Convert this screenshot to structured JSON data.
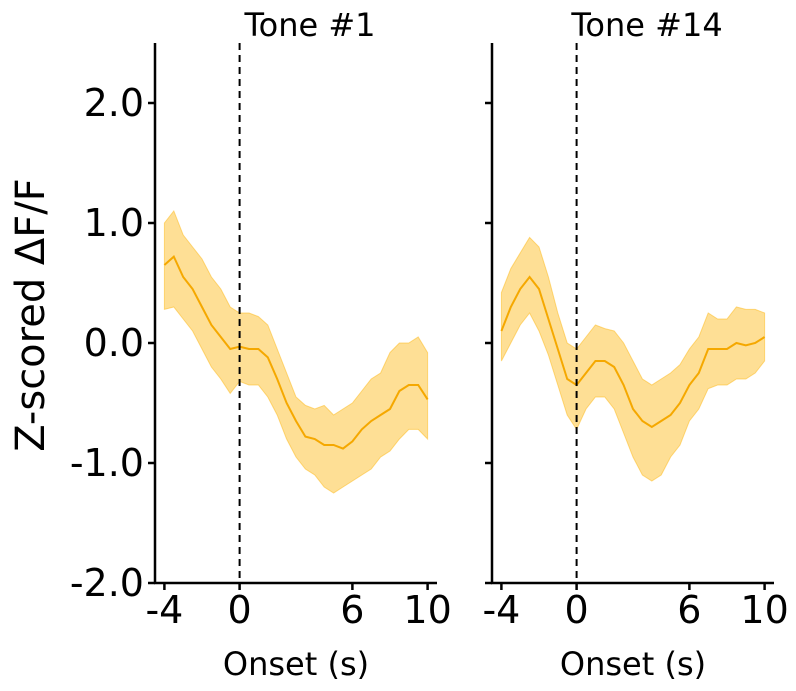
{
  "chart_data": {
    "type": "line",
    "ylabel": "Z-scored ΔF/F",
    "ylim": [
      -2.0,
      2.5
    ],
    "yticks": [
      -2.0,
      -1.0,
      0.0,
      1.0,
      2.0
    ],
    "ytick_labels": [
      "-2.0",
      "-1.0",
      "0.0",
      "1.0",
      "2.0"
    ],
    "xlim": [
      -4.5,
      10.5
    ],
    "xticks": [
      -4,
      0,
      6,
      10
    ],
    "xtick_labels": [
      "-4",
      "0",
      "6",
      "10"
    ],
    "onset_marker_x": 0,
    "colors": {
      "line": "#f5a800",
      "band": "#fdb714"
    },
    "grid": false,
    "legend": "none",
    "panels": [
      {
        "title": "Tone #1",
        "xlabel": "Onset (s)",
        "x": [
          -4,
          -3.5,
          -3,
          -2.5,
          -2,
          -1.5,
          -1,
          -0.5,
          0,
          0.5,
          1,
          1.5,
          2,
          2.5,
          3,
          3.5,
          4,
          4.5,
          5,
          5.5,
          6,
          6.5,
          7,
          7.5,
          8,
          8.5,
          9,
          9.5,
          10
        ],
        "mean": [
          0.65,
          0.72,
          0.55,
          0.45,
          0.3,
          0.15,
          0.05,
          -0.05,
          -0.03,
          -0.05,
          -0.05,
          -0.12,
          -0.3,
          -0.5,
          -0.65,
          -0.78,
          -0.8,
          -0.85,
          -0.85,
          -0.88,
          -0.82,
          -0.72,
          -0.65,
          -0.6,
          -0.55,
          -0.4,
          -0.35,
          -0.35,
          -0.47
        ],
        "upper": [
          1.0,
          1.1,
          0.9,
          0.8,
          0.7,
          0.55,
          0.45,
          0.3,
          0.25,
          0.25,
          0.22,
          0.15,
          -0.05,
          -0.25,
          -0.45,
          -0.52,
          -0.55,
          -0.52,
          -0.6,
          -0.55,
          -0.5,
          -0.4,
          -0.3,
          -0.25,
          -0.08,
          0.0,
          0.0,
          0.05,
          -0.08
        ],
        "lower": [
          0.28,
          0.3,
          0.2,
          0.1,
          -0.05,
          -0.2,
          -0.3,
          -0.42,
          -0.32,
          -0.35,
          -0.35,
          -0.45,
          -0.6,
          -0.8,
          -0.95,
          -1.05,
          -1.1,
          -1.2,
          -1.25,
          -1.2,
          -1.15,
          -1.1,
          -1.05,
          -0.95,
          -0.9,
          -0.8,
          -0.72,
          -0.72,
          -0.8
        ]
      },
      {
        "title": "Tone #14",
        "xlabel": "Onset (s)",
        "x": [
          -4,
          -3.5,
          -3,
          -2.5,
          -2,
          -1.5,
          -1,
          -0.5,
          0,
          0.5,
          1,
          1.5,
          2,
          2.5,
          3,
          3.5,
          4,
          4.5,
          5,
          5.5,
          6,
          6.5,
          7,
          7.5,
          8,
          8.5,
          9,
          9.5,
          10
        ],
        "mean": [
          0.1,
          0.3,
          0.45,
          0.55,
          0.45,
          0.2,
          -0.05,
          -0.3,
          -0.35,
          -0.25,
          -0.15,
          -0.15,
          -0.2,
          -0.35,
          -0.55,
          -0.65,
          -0.7,
          -0.65,
          -0.6,
          -0.5,
          -0.35,
          -0.25,
          -0.05,
          -0.05,
          -0.05,
          0.0,
          -0.02,
          0.0,
          0.05
        ],
        "upper": [
          0.42,
          0.62,
          0.75,
          0.88,
          0.8,
          0.55,
          0.25,
          0.0,
          -0.05,
          0.05,
          0.15,
          0.12,
          0.1,
          0.0,
          -0.15,
          -0.3,
          -0.35,
          -0.3,
          -0.25,
          -0.18,
          -0.05,
          0.05,
          0.25,
          0.2,
          0.2,
          0.3,
          0.28,
          0.28,
          0.25
        ],
        "lower": [
          -0.15,
          0.0,
          0.15,
          0.25,
          0.1,
          -0.1,
          -0.35,
          -0.6,
          -0.72,
          -0.55,
          -0.45,
          -0.45,
          -0.55,
          -0.75,
          -0.95,
          -1.1,
          -1.15,
          -1.1,
          -0.95,
          -0.85,
          -0.65,
          -0.55,
          -0.38,
          -0.35,
          -0.35,
          -0.3,
          -0.3,
          -0.25,
          -0.15
        ]
      }
    ]
  }
}
